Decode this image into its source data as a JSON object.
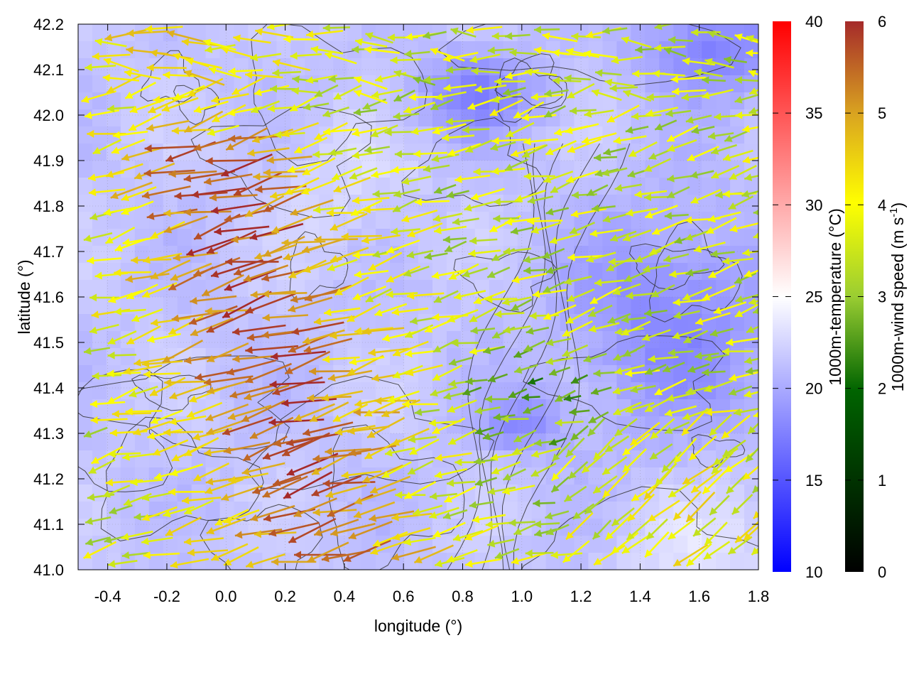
{
  "chart_data": {
    "type": "heatmap",
    "title": "",
    "xlabel": "longitude (°)",
    "ylabel": "latitude (°)",
    "xlim": [
      -0.5,
      1.8
    ],
    "ylim": [
      41.0,
      42.2
    ],
    "x_ticks": [
      "-0.4",
      "-0.2",
      "0.0",
      "0.2",
      "0.4",
      "0.6",
      "0.8",
      "1.0",
      "1.2",
      "1.4",
      "1.6",
      "1.8"
    ],
    "y_ticks": [
      "41.0",
      "41.1",
      "41.2",
      "41.3",
      "41.4",
      "41.5",
      "41.6",
      "41.7",
      "41.8",
      "41.9",
      "42.0",
      "42.1",
      "42.2"
    ],
    "grid": true,
    "fill": {
      "variable": "1000m-temperature",
      "units": "°C",
      "colorbar_label": "1000m-temperature (°C)",
      "range": [
        10,
        40
      ],
      "ticks": [
        "10",
        "15",
        "20",
        "25",
        "30",
        "35",
        "40"
      ],
      "colors": [
        "#0000ff",
        "#ffffff",
        "#ff0000"
      ]
    },
    "arrows": {
      "variable": "1000m-wind speed",
      "units": "m s-1",
      "colorbar_label_prefix": "1000m-wind speed (m s",
      "colorbar_label_sup": "-1",
      "colorbar_label_suffix": ")",
      "range": [
        0,
        6
      ],
      "ticks": [
        "0",
        "1",
        "2",
        "3",
        "4",
        "5",
        "6"
      ],
      "colors": [
        "#000000",
        "#006400",
        "#9acd32",
        "#ffff00",
        "#daa520",
        "#a52a2a"
      ],
      "general_direction": "from east (westward flow)"
    },
    "contours": {
      "color": "#333333",
      "shown": true
    },
    "legend": "colorbars-right"
  }
}
